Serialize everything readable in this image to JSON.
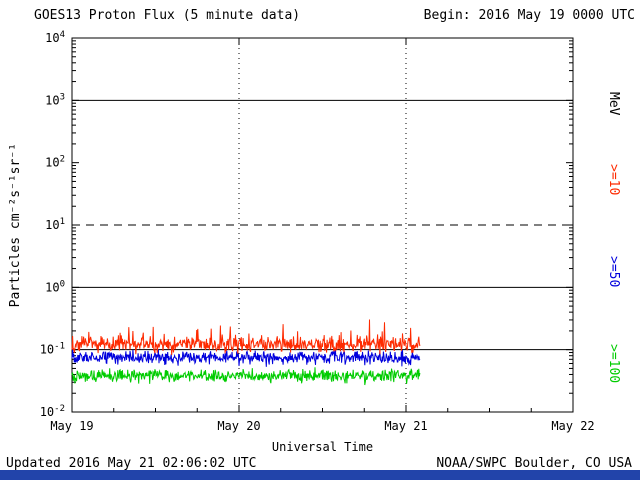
{
  "page": {
    "title": "GOES13 Proton Flux (5 minute data)",
    "begin_label": "Begin: 2016 May 19 0000 UTC",
    "updated": "Updated 2016 May 21 02:06:02 UTC",
    "credit": "NOAA/SWPC Boulder, CO USA"
  },
  "colors": {
    "background": "#ffffff",
    "axis": "#000000",
    "footer_bar": "#2244aa"
  },
  "chart_data": {
    "type": "line",
    "title": "GOES13 Proton Flux (5 minute data)",
    "begin": "2016 May 19 0000 UTC",
    "xlabel": "Universal Time",
    "ylabel": "Particles cm⁻²s⁻¹sr⁻¹",
    "right_axis_label": "MeV",
    "x_ticks": [
      "May 19",
      "May 20",
      "May 21",
      "May 22"
    ],
    "x_tick_days": [
      0,
      1,
      2,
      3
    ],
    "xlim_days": [
      0,
      3
    ],
    "y_tick_exponents": [
      4,
      3,
      2,
      1,
      0,
      -1,
      -2
    ],
    "ylim_log10": [
      -2,
      4
    ],
    "grid": {
      "solid_lines_log10": [
        3,
        0,
        -1
      ],
      "dashed_lines_log10": [
        1
      ],
      "vertical_dotted_days": [
        1,
        2
      ]
    },
    "legend_position": "right",
    "sample_interval_minutes": 5,
    "data_start_day": 0,
    "data_end_day": 2.086,
    "seed": 20160521,
    "series": [
      {
        "name": ">=10",
        "units": "MeV",
        "color": "#fe2a00",
        "base_log10": -0.92,
        "noise_log10": 0.2,
        "spike_prob": 0.08,
        "spike_log10": 0.3,
        "approx_flux_range": [
          0.07,
          0.4
        ],
        "approx_mean_flux": 0.12
      },
      {
        "name": ">=50",
        "units": "MeV",
        "color": "#0000dd",
        "base_log10": -1.13,
        "noise_log10": 0.16,
        "spike_prob": 0,
        "spike_log10": 0,
        "approx_flux_range": [
          0.04,
          0.12
        ],
        "approx_mean_flux": 0.07
      },
      {
        "name": ">=100",
        "units": "MeV",
        "color": "#00cc00",
        "base_log10": -1.42,
        "noise_log10": 0.16,
        "spike_prob": 0,
        "spike_log10": 0,
        "approx_flux_range": [
          0.025,
          0.06
        ],
        "approx_mean_flux": 0.04
      }
    ]
  }
}
